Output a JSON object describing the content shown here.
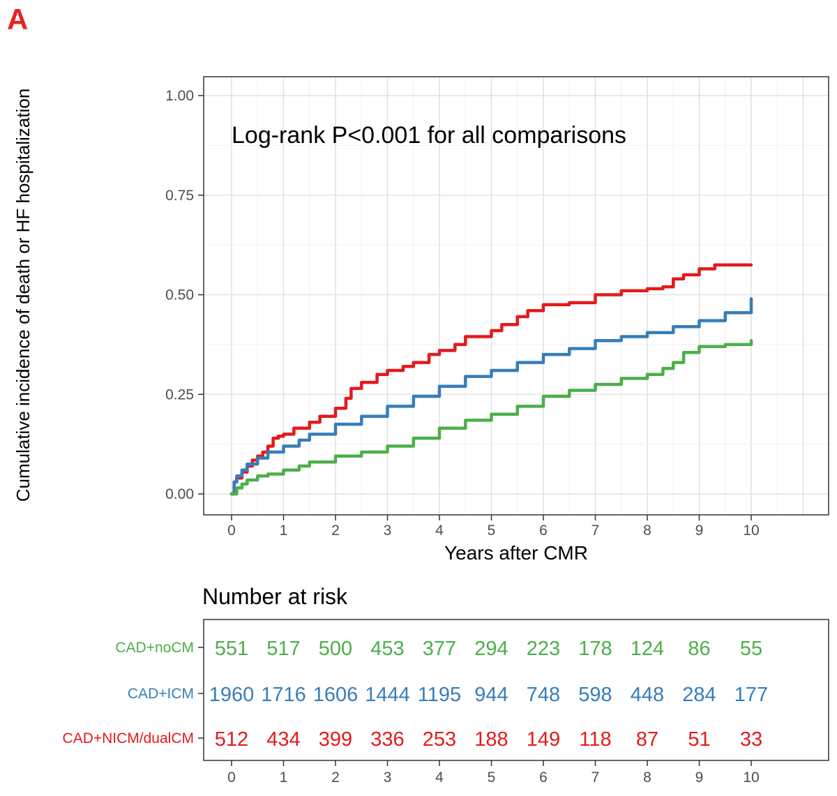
{
  "panel_label": "A",
  "chart_data": [
    {
      "type": "line",
      "subtype": "kaplan-meier-cumulative-incidence",
      "title": "",
      "xlabel": "Years after CMR",
      "ylabel": "Cumulative incidence of death or HF hospitalization",
      "annotation": "Log-rank P<0.001 for all comparisons",
      "xlim": [
        -0.5,
        11
      ],
      "ylim": [
        -0.05,
        1.05
      ],
      "x_ticks": [
        0,
        1,
        2,
        3,
        4,
        5,
        6,
        7,
        8,
        9,
        10
      ],
      "y_ticks": [
        0.0,
        0.25,
        0.5,
        0.75,
        1.0
      ],
      "y_tick_labels": [
        "0.00",
        "0.25",
        "0.50",
        "0.75",
        "1.00"
      ],
      "grid": true,
      "legend": "none",
      "series": [
        {
          "color": "#e41a1c",
          "x": [
            0,
            0.05,
            0.1,
            0.2,
            0.3,
            0.4,
            0.5,
            0.6,
            0.7,
            0.8,
            0.9,
            1.0,
            1.2,
            1.5,
            1.7,
            2.0,
            2.2,
            2.3,
            2.5,
            2.8,
            3.0,
            3.3,
            3.5,
            3.8,
            4.0,
            4.3,
            4.5,
            5.0,
            5.2,
            5.5,
            5.7,
            6.0,
            6.5,
            7.0,
            7.5,
            8.0,
            8.3,
            8.5,
            8.7,
            9.0,
            9.3,
            10.0
          ],
          "y": [
            0,
            0.03,
            0.04,
            0.055,
            0.07,
            0.085,
            0.095,
            0.105,
            0.12,
            0.14,
            0.145,
            0.15,
            0.165,
            0.18,
            0.195,
            0.215,
            0.24,
            0.265,
            0.28,
            0.3,
            0.31,
            0.32,
            0.33,
            0.35,
            0.36,
            0.375,
            0.395,
            0.41,
            0.425,
            0.445,
            0.46,
            0.475,
            0.48,
            0.5,
            0.51,
            0.515,
            0.52,
            0.54,
            0.55,
            0.565,
            0.575,
            0.575
          ]
        },
        {
          "color": "#377eb8",
          "x": [
            0,
            0.05,
            0.1,
            0.2,
            0.3,
            0.5,
            0.7,
            1.0,
            1.3,
            1.5,
            2.0,
            2.5,
            3.0,
            3.5,
            4.0,
            4.5,
            5.0,
            5.5,
            6.0,
            6.5,
            7.0,
            7.5,
            8.0,
            8.5,
            9.0,
            9.5,
            10.0
          ],
          "y": [
            0,
            0.03,
            0.045,
            0.06,
            0.075,
            0.09,
            0.105,
            0.12,
            0.135,
            0.15,
            0.175,
            0.195,
            0.22,
            0.245,
            0.27,
            0.295,
            0.31,
            0.33,
            0.35,
            0.365,
            0.385,
            0.395,
            0.405,
            0.42,
            0.435,
            0.455,
            0.49
          ]
        },
        {
          "color": "#4daf4a",
          "x": [
            0,
            0.1,
            0.2,
            0.3,
            0.5,
            0.7,
            1.0,
            1.3,
            1.5,
            2.0,
            2.5,
            3.0,
            3.5,
            4.0,
            4.5,
            5.0,
            5.5,
            6.0,
            6.5,
            7.0,
            7.5,
            8.0,
            8.3,
            8.5,
            8.7,
            9.0,
            9.5,
            10.0
          ],
          "y": [
            0,
            0.015,
            0.025,
            0.035,
            0.045,
            0.05,
            0.06,
            0.07,
            0.08,
            0.095,
            0.105,
            0.12,
            0.14,
            0.165,
            0.185,
            0.2,
            0.22,
            0.245,
            0.26,
            0.275,
            0.29,
            0.3,
            0.315,
            0.33,
            0.355,
            0.37,
            0.375,
            0.385
          ]
        }
      ]
    },
    {
      "type": "table",
      "title": "Number at risk",
      "x_ticks": [
        0,
        1,
        2,
        3,
        4,
        5,
        6,
        7,
        8,
        9,
        10
      ],
      "rows": [
        {
          "label": "CAD+noCM",
          "color": "#4daf4a",
          "values": [
            "551",
            "517",
            "500",
            "453",
            "377",
            "294",
            "223",
            "178",
            "124",
            "86",
            "55"
          ]
        },
        {
          "label": "CAD+ICM",
          "color": "#377eb8",
          "values": [
            "1960",
            "1716",
            "1606",
            "1444",
            "1195",
            "944",
            "748",
            "598",
            "448",
            "284",
            "177"
          ]
        },
        {
          "label": "CAD+NICM/dualCM",
          "color": "#e41a1c",
          "values": [
            "512",
            "434",
            "399",
            "336",
            "253",
            "188",
            "149",
            "118",
            "87",
            "51",
            "33"
          ]
        }
      ]
    }
  ]
}
